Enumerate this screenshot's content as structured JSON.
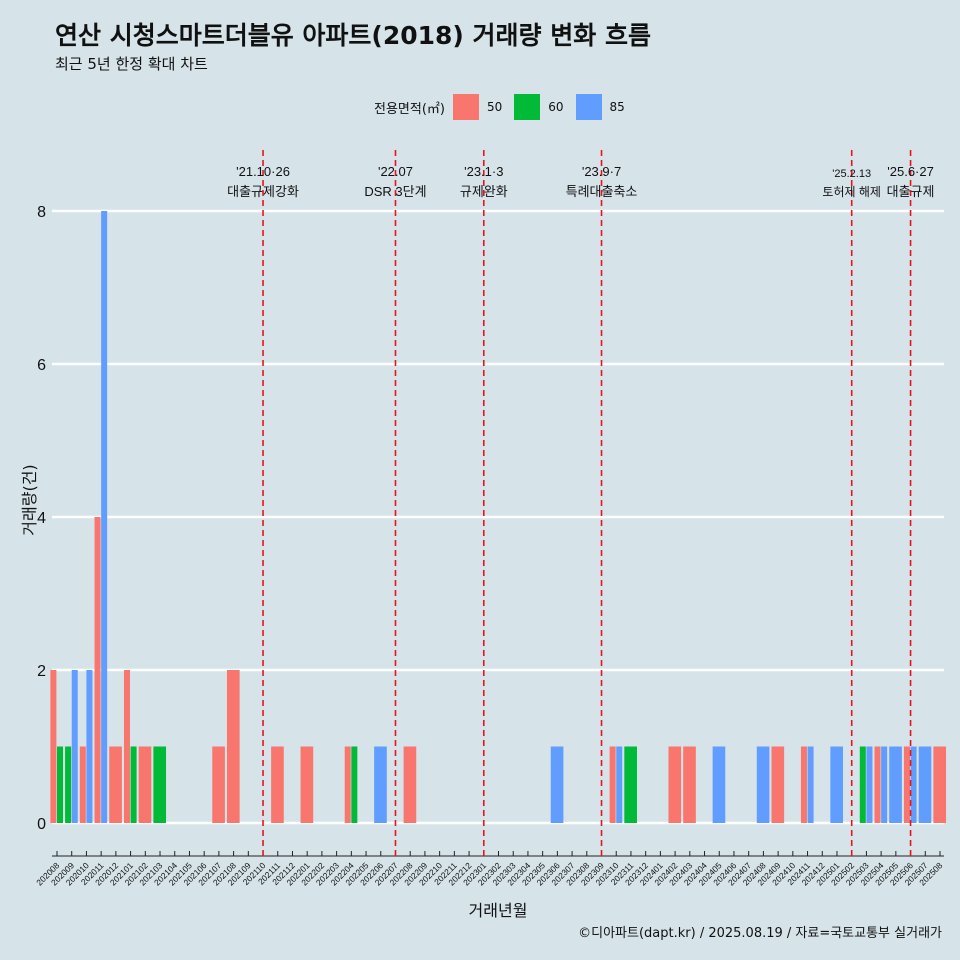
{
  "header": {
    "title": "연산 시청스마트더블유 아파트(2018) 거래량 변화 흐름",
    "subtitle": "최근 5년 한정 확대 차트"
  },
  "legend": {
    "title": "전용면적(㎡)",
    "items": [
      {
        "label": "50",
        "color": "#f8766d"
      },
      {
        "label": "60",
        "color": "#00ba38"
      },
      {
        "label": "85",
        "color": "#619cff"
      }
    ]
  },
  "caption": "©디아파트(dapt.kr) / 2025.08.19 / 자료=국토교통부 실거래가",
  "chart_data": {
    "type": "bar",
    "xlabel": "거래년월",
    "ylabel": "거래량(건)",
    "ylim": [
      0,
      8.5
    ],
    "yticks": [
      0,
      2,
      4,
      6,
      8
    ],
    "grid": "horizontal",
    "legend_position": "top",
    "categories": [
      "202008",
      "202009",
      "202010",
      "202011",
      "202012",
      "202101",
      "202102",
      "202103",
      "202104",
      "202105",
      "202106",
      "202107",
      "202108",
      "202109",
      "202110",
      "202111",
      "202112",
      "202201",
      "202202",
      "202203",
      "202204",
      "202205",
      "202206",
      "202207",
      "202208",
      "202209",
      "202210",
      "202211",
      "202212",
      "202301",
      "202302",
      "202303",
      "202304",
      "202305",
      "202306",
      "202307",
      "202308",
      "202309",
      "202310",
      "202311",
      "202312",
      "202401",
      "202402",
      "202403",
      "202404",
      "202405",
      "202406",
      "202407",
      "202408",
      "202409",
      "202410",
      "202411",
      "202412",
      "202501",
      "202502",
      "202503",
      "202504",
      "202505",
      "202506",
      "202507",
      "202508"
    ],
    "series": [
      {
        "name": "50",
        "color": "#f8766d",
        "values": [
          2,
          0,
          1,
          4,
          1,
          2,
          1,
          0,
          0,
          0,
          0,
          1,
          2,
          0,
          0,
          1,
          0,
          1,
          0,
          0,
          1,
          0,
          0,
          0,
          1,
          0,
          0,
          0,
          0,
          0,
          0,
          0,
          0,
          0,
          0,
          0,
          0,
          0,
          1,
          0,
          0,
          0,
          1,
          1,
          0,
          0,
          0,
          0,
          0,
          1,
          0,
          1,
          0,
          0,
          0,
          0,
          1,
          0,
          1,
          0,
          1
        ]
      },
      {
        "name": "60",
        "color": "#00ba38",
        "values": [
          1,
          1,
          0,
          0,
          0,
          1,
          0,
          1,
          0,
          0,
          0,
          0,
          0,
          0,
          0,
          0,
          0,
          0,
          0,
          0,
          1,
          0,
          0,
          0,
          0,
          0,
          0,
          0,
          0,
          0,
          0,
          0,
          0,
          0,
          0,
          0,
          0,
          0,
          0,
          1,
          0,
          0,
          0,
          0,
          0,
          0,
          0,
          0,
          0,
          0,
          0,
          0,
          0,
          0,
          0,
          1,
          0,
          0,
          0,
          0,
          0
        ]
      },
      {
        "name": "85",
        "color": "#619cff",
        "values": [
          0,
          2,
          2,
          8,
          0,
          0,
          0,
          0,
          0,
          0,
          0,
          0,
          0,
          0,
          0,
          0,
          0,
          0,
          0,
          0,
          0,
          0,
          1,
          0,
          0,
          0,
          0,
          0,
          0,
          0,
          0,
          0,
          0,
          0,
          1,
          0,
          0,
          0,
          1,
          0,
          0,
          0,
          0,
          0,
          0,
          1,
          0,
          0,
          1,
          0,
          0,
          1,
          0,
          1,
          0,
          1,
          1,
          1,
          1,
          1,
          0
        ]
      }
    ],
    "annotations": [
      {
        "x": "202110",
        "date": "'21.10·26",
        "label": "대출규제강화"
      },
      {
        "x": "202207",
        "date": "'22.07",
        "label": "DSR 3단계"
      },
      {
        "x": "202301",
        "date": "'23.1·3",
        "label": "규제완화"
      },
      {
        "x": "202309",
        "date": "'23.9·7",
        "label": "특례대출축소"
      },
      {
        "x": "202502",
        "date": "'25.2.13",
        "label": "토허제 해제"
      },
      {
        "x": "202506",
        "date": "'25.6·27",
        "label": "대출규제"
      }
    ]
  }
}
